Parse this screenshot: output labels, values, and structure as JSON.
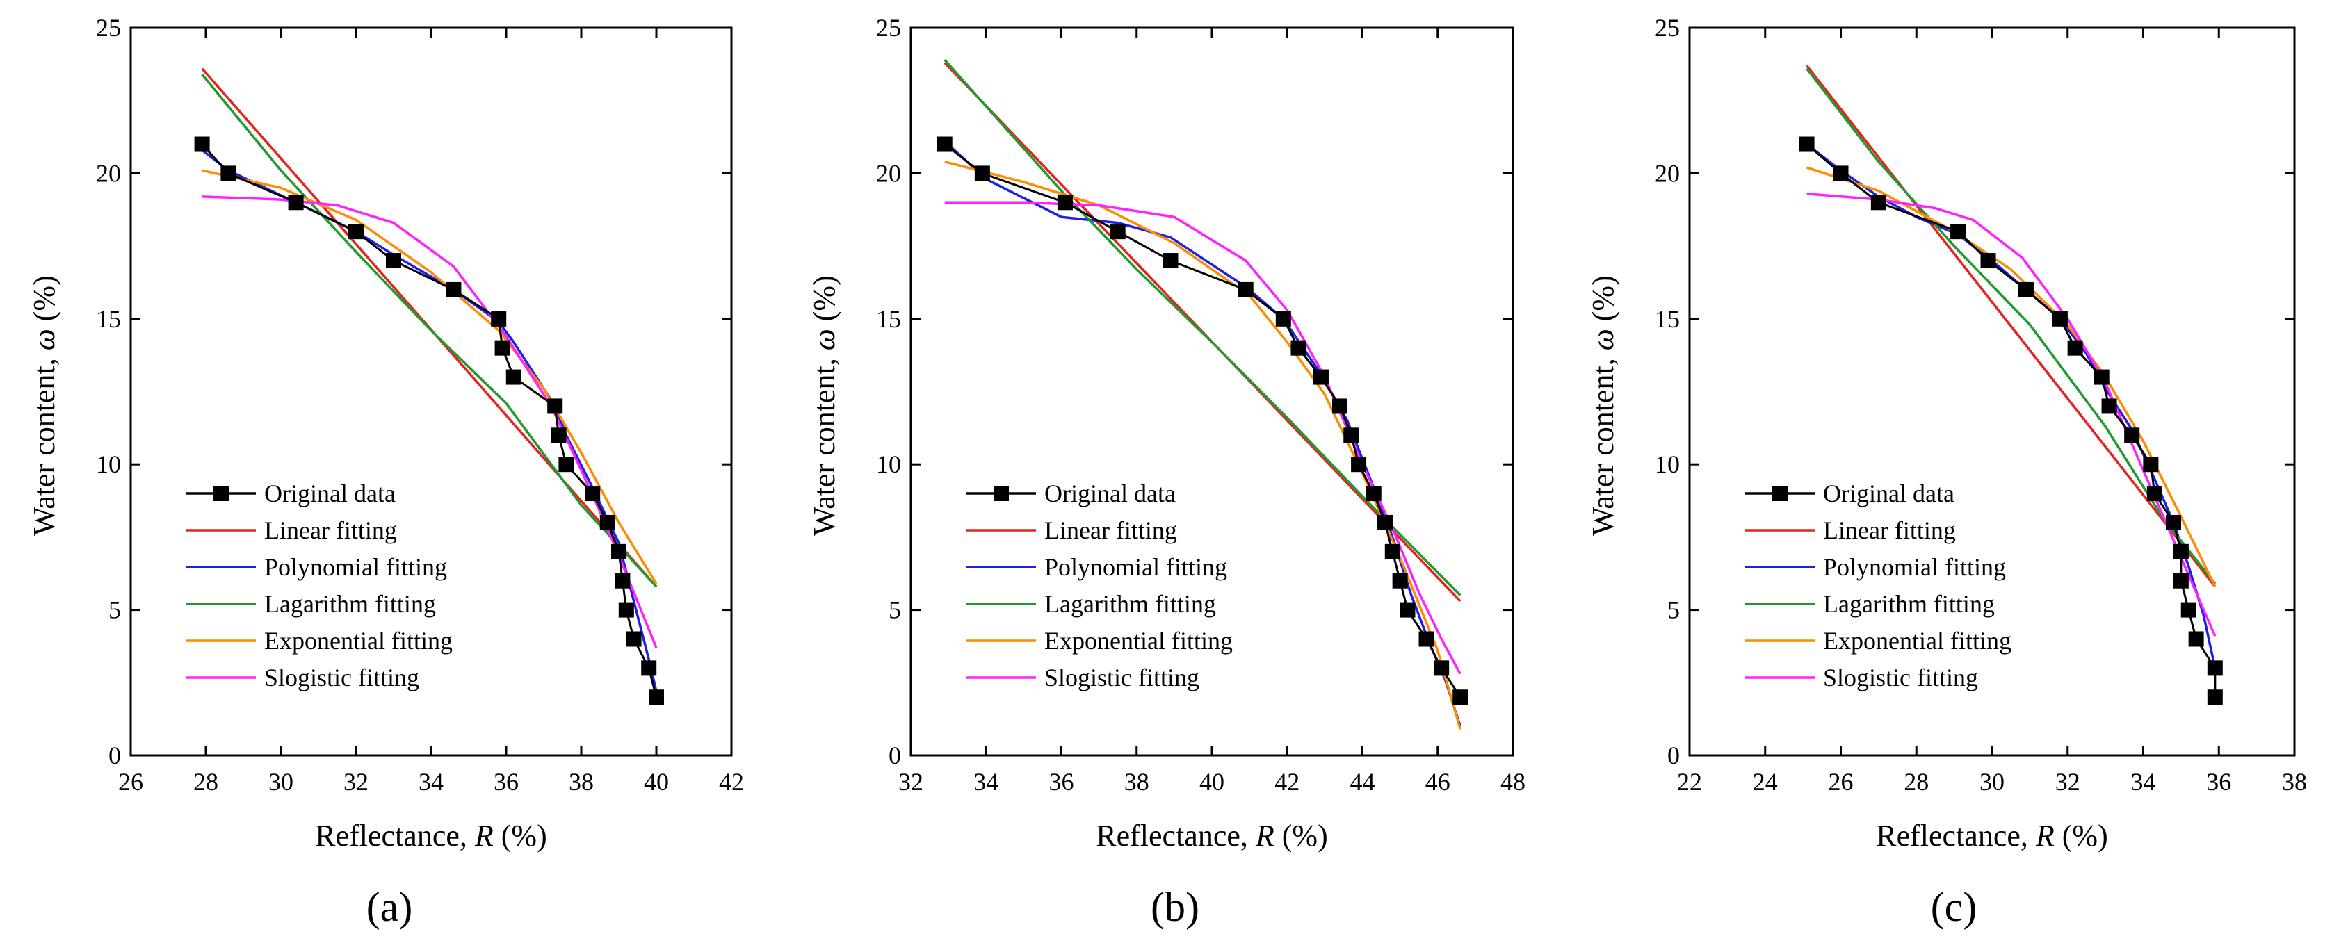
{
  "chart_data": [
    {
      "type": "line",
      "panel_label": "(a)",
      "xlabel": {
        "text": "Reflectance, ",
        "var": "R",
        "unit": " (%)"
      },
      "ylabel": {
        "text": "Water content, ",
        "var": "ω",
        "unit": " (%)"
      },
      "xlim": [
        26,
        42
      ],
      "ylim": [
        0,
        25
      ],
      "xticks": [
        26,
        28,
        30,
        32,
        34,
        36,
        38,
        40,
        42
      ],
      "yticks": [
        0,
        5,
        10,
        15,
        20,
        25
      ],
      "grid": false,
      "legend_position": "bottom-left",
      "series": [
        {
          "name": "Original data",
          "color": "#000000",
          "marker": "square",
          "points": [
            [
              27.9,
              21
            ],
            [
              28.6,
              20
            ],
            [
              30.4,
              19
            ],
            [
              32,
              18
            ],
            [
              33,
              17
            ],
            [
              34.6,
              16
            ],
            [
              35.8,
              15
            ],
            [
              35.9,
              14
            ],
            [
              36.2,
              13
            ],
            [
              37.3,
              12
            ],
            [
              37.4,
              11
            ],
            [
              37.6,
              10
            ],
            [
              38.3,
              9
            ],
            [
              38.7,
              8
            ],
            [
              39,
              7
            ],
            [
              39.1,
              6
            ],
            [
              39.2,
              5
            ],
            [
              39.4,
              4
            ],
            [
              39.8,
              3
            ],
            [
              40,
              2
            ]
          ]
        },
        {
          "name": "Linear fitting",
          "color": "#e8231f",
          "points": [
            [
              27.9,
              23.6
            ],
            [
              40,
              5.8
            ]
          ]
        },
        {
          "name": "Polynomial fitting",
          "color": "#1f1fe8",
          "points": [
            [
              27.9,
              20.8
            ],
            [
              28.6,
              20.1
            ],
            [
              30.4,
              19
            ],
            [
              32,
              18
            ],
            [
              33,
              17.2
            ],
            [
              34.6,
              16
            ],
            [
              35.8,
              14.9
            ],
            [
              36.2,
              14.2
            ],
            [
              37.3,
              12
            ],
            [
              37.6,
              11
            ],
            [
              38.3,
              9.2
            ],
            [
              39,
              7.3
            ],
            [
              39.4,
              5.3
            ],
            [
              39.8,
              3.3
            ],
            [
              40,
              2.2
            ]
          ]
        },
        {
          "name": "Lagarithm fitting",
          "color": "#1f9a2e",
          "points": [
            [
              27.9,
              23.4
            ],
            [
              30,
              20.1
            ],
            [
              32,
              17.3
            ],
            [
              34,
              14.6
            ],
            [
              36,
              12.1
            ],
            [
              38,
              8.6
            ],
            [
              40,
              5.8
            ]
          ]
        },
        {
          "name": "Exponential fitting",
          "color": "#ff8c00",
          "points": [
            [
              27.9,
              20.1
            ],
            [
              30,
              19.5
            ],
            [
              32,
              18.4
            ],
            [
              34,
              16.6
            ],
            [
              35.8,
              14.6
            ],
            [
              37,
              12.6
            ],
            [
              38,
              10.4
            ],
            [
              39,
              8
            ],
            [
              40,
              5.9
            ]
          ]
        },
        {
          "name": "Slogistic fitting",
          "color": "#ff22ff",
          "points": [
            [
              27.9,
              19.2
            ],
            [
              30,
              19.1
            ],
            [
              31.5,
              18.9
            ],
            [
              33,
              18.3
            ],
            [
              34.6,
              16.8
            ],
            [
              36,
              14.4
            ],
            [
              37.2,
              12
            ],
            [
              38,
              9.8
            ],
            [
              38.7,
              7.8
            ],
            [
              39.4,
              5.6
            ],
            [
              40,
              3.7
            ]
          ]
        }
      ]
    },
    {
      "type": "line",
      "panel_label": "(b)",
      "xlabel": {
        "text": "Reflectance, ",
        "var": "R",
        "unit": " (%)"
      },
      "ylabel": {
        "text": "Water content, ",
        "var": "ω",
        "unit": " (%)"
      },
      "xlim": [
        32,
        48
      ],
      "ylim": [
        0,
        25
      ],
      "xticks": [
        32,
        34,
        36,
        38,
        40,
        42,
        44,
        46,
        48
      ],
      "yticks": [
        0,
        5,
        10,
        15,
        20,
        25
      ],
      "grid": false,
      "legend_position": "bottom-left",
      "series": [
        {
          "name": "Original data",
          "color": "#000000",
          "marker": "square",
          "points": [
            [
              32.9,
              21
            ],
            [
              33.9,
              20
            ],
            [
              36.1,
              19
            ],
            [
              37.5,
              18
            ],
            [
              38.9,
              17
            ],
            [
              40.9,
              16
            ],
            [
              41.9,
              15
            ],
            [
              42.3,
              14
            ],
            [
              42.9,
              13
            ],
            [
              43.4,
              12
            ],
            [
              43.7,
              11
            ],
            [
              43.9,
              10
            ],
            [
              44.3,
              9
            ],
            [
              44.6,
              8
            ],
            [
              44.8,
              7
            ],
            [
              45,
              6
            ],
            [
              45.2,
              5
            ],
            [
              45.7,
              4
            ],
            [
              46.1,
              3
            ],
            [
              46.6,
              2
            ]
          ]
        },
        {
          "name": "Linear fitting",
          "color": "#e8231f",
          "points": [
            [
              32.9,
              23.8
            ],
            [
              46.6,
              5.3
            ]
          ]
        },
        {
          "name": "Polynomial fitting",
          "color": "#1f1fe8",
          "points": [
            [
              32.9,
              21.1
            ],
            [
              34,
              19.8
            ],
            [
              36,
              18.5
            ],
            [
              37.5,
              18.3
            ],
            [
              38.9,
              17.8
            ],
            [
              40.9,
              16.1
            ],
            [
              41.9,
              15
            ],
            [
              42.9,
              13.1
            ],
            [
              43.6,
              11.5
            ],
            [
              44.3,
              9.2
            ],
            [
              44.8,
              7.5
            ],
            [
              45.3,
              5.5
            ],
            [
              45.8,
              3.8
            ],
            [
              46.2,
              2.6
            ],
            [
              46.6,
              1
            ]
          ]
        },
        {
          "name": "Lagarithm fitting",
          "color": "#1f9a2e",
          "points": [
            [
              32.9,
              23.9
            ],
            [
              36,
              19.4
            ],
            [
              38,
              16.7
            ],
            [
              40,
              14.2
            ],
            [
              42,
              11.6
            ],
            [
              44,
              8.9
            ],
            [
              46.6,
              5.5
            ]
          ]
        },
        {
          "name": "Exponential fitting",
          "color": "#ff8c00",
          "points": [
            [
              32.9,
              20.4
            ],
            [
              35,
              19.7
            ],
            [
              37,
              18.9
            ],
            [
              39,
              17.6
            ],
            [
              41,
              15.8
            ],
            [
              42,
              14.2
            ],
            [
              43,
              12.4
            ],
            [
              44,
              9.7
            ],
            [
              45,
              6.8
            ],
            [
              46,
              3.6
            ],
            [
              46.6,
              0.9
            ]
          ]
        },
        {
          "name": "Slogistic fitting",
          "color": "#ff22ff",
          "points": [
            [
              32.9,
              19
            ],
            [
              35,
              19
            ],
            [
              37,
              18.9
            ],
            [
              39,
              18.5
            ],
            [
              40.9,
              17
            ],
            [
              42,
              15.3
            ],
            [
              43,
              13
            ],
            [
              44,
              10
            ],
            [
              44.8,
              7.8
            ],
            [
              45.5,
              5.6
            ],
            [
              46.1,
              4
            ],
            [
              46.6,
              2.8
            ]
          ]
        }
      ]
    },
    {
      "type": "line",
      "panel_label": "(c)",
      "xlabel": {
        "text": "Reflectance, ",
        "var": "R",
        "unit": " (%)"
      },
      "ylabel": {
        "text": "Water content, ",
        "var": "ω",
        "unit": " (%)"
      },
      "xlim": [
        22,
        38
      ],
      "ylim": [
        0,
        25
      ],
      "xticks": [
        22,
        24,
        26,
        28,
        30,
        32,
        34,
        36,
        38
      ],
      "yticks": [
        0,
        5,
        10,
        15,
        20,
        25
      ],
      "grid": false,
      "legend_position": "bottom-left",
      "series": [
        {
          "name": "Original data",
          "color": "#000000",
          "marker": "square",
          "points": [
            [
              25.1,
              21
            ],
            [
              26,
              20
            ],
            [
              27,
              19
            ],
            [
              29.1,
              18
            ],
            [
              29.9,
              17
            ],
            [
              30.9,
              16
            ],
            [
              31.8,
              15
            ],
            [
              32.2,
              14
            ],
            [
              32.9,
              13
            ],
            [
              33.1,
              12
            ],
            [
              33.7,
              11
            ],
            [
              34.2,
              10
            ],
            [
              34.3,
              9
            ],
            [
              34.8,
              8
            ],
            [
              35,
              7
            ],
            [
              35,
              6
            ],
            [
              35.2,
              5
            ],
            [
              35.4,
              4
            ],
            [
              35.9,
              3
            ],
            [
              35.9,
              2
            ]
          ]
        },
        {
          "name": "Linear fitting",
          "color": "#e8231f",
          "points": [
            [
              25.1,
              23.7
            ],
            [
              35.9,
              5.8
            ]
          ]
        },
        {
          "name": "Polynomial fitting",
          "color": "#1f1fe8",
          "points": [
            [
              25.1,
              21
            ],
            [
              26,
              20.1
            ],
            [
              27,
              19.2
            ],
            [
              28,
              18.5
            ],
            [
              29.1,
              17.9
            ],
            [
              30,
              17
            ],
            [
              30.9,
              16
            ],
            [
              31.8,
              15
            ],
            [
              32.5,
              13.8
            ],
            [
              33,
              12.6
            ],
            [
              33.7,
              11.2
            ],
            [
              34.3,
              9.5
            ],
            [
              34.8,
              8
            ],
            [
              35.2,
              6.5
            ],
            [
              35.6,
              4.8
            ],
            [
              35.9,
              3
            ]
          ]
        },
        {
          "name": "Lagarithm fitting",
          "color": "#1f9a2e",
          "points": [
            [
              25.1,
              23.6
            ],
            [
              27,
              20.4
            ],
            [
              29,
              17.5
            ],
            [
              31,
              14.8
            ],
            [
              33,
              11.3
            ],
            [
              34.5,
              8.2
            ],
            [
              35.9,
              5.9
            ]
          ]
        },
        {
          "name": "Exponential fitting",
          "color": "#ff8c00",
          "points": [
            [
              25.1,
              20.2
            ],
            [
              27,
              19.4
            ],
            [
              29,
              18
            ],
            [
              30.5,
              16.7
            ],
            [
              32,
              14.8
            ],
            [
              33,
              13
            ],
            [
              34,
              10.8
            ],
            [
              35,
              8.2
            ],
            [
              35.9,
              5.8
            ]
          ]
        },
        {
          "name": "Slogistic fitting",
          "color": "#ff22ff",
          "points": [
            [
              25.1,
              19.3
            ],
            [
              27,
              19.1
            ],
            [
              28.5,
              18.8
            ],
            [
              29.5,
              18.4
            ],
            [
              30.8,
              17.1
            ],
            [
              32,
              15
            ],
            [
              33,
              12.8
            ],
            [
              34,
              9.8
            ],
            [
              34.8,
              7.4
            ],
            [
              35.4,
              5.6
            ],
            [
              35.9,
              4.1
            ]
          ]
        }
      ]
    }
  ]
}
